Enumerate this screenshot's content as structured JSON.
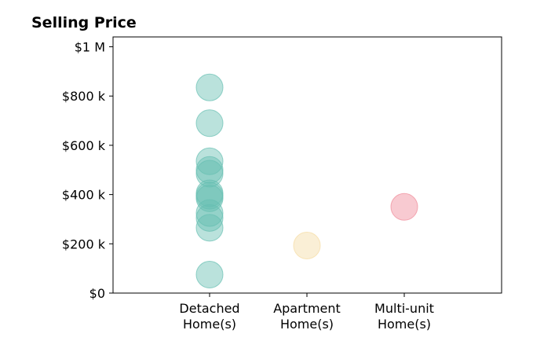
{
  "chart_data": {
    "type": "scatter",
    "title": "Selling Price",
    "xlabel": "",
    "ylabel": "",
    "categories": [
      "Detached\nHome(s)",
      "Apartment\nHome(s)",
      "Multi-unit\nHome(s)"
    ],
    "ylim": [
      0,
      1040000
    ],
    "y_ticks": [
      0,
      200000,
      400000,
      600000,
      800000,
      1000000
    ],
    "y_tick_labels": [
      "$0",
      "$200 k",
      "$400 k",
      "$600 k",
      "$800 k",
      "$1 M"
    ],
    "grid": false,
    "legend": "none",
    "series": [
      {
        "category_index": 0,
        "color": "#66bfb2",
        "values": [
          835000,
          690000,
          535000,
          500000,
          485000,
          405000,
          395000,
          385000,
          325000,
          305000,
          265000,
          75000
        ]
      },
      {
        "category_index": 1,
        "color": "#f5dca3",
        "values": [
          193000
        ]
      },
      {
        "category_index": 2,
        "color": "#ef8a98",
        "values": [
          350000
        ]
      }
    ]
  }
}
